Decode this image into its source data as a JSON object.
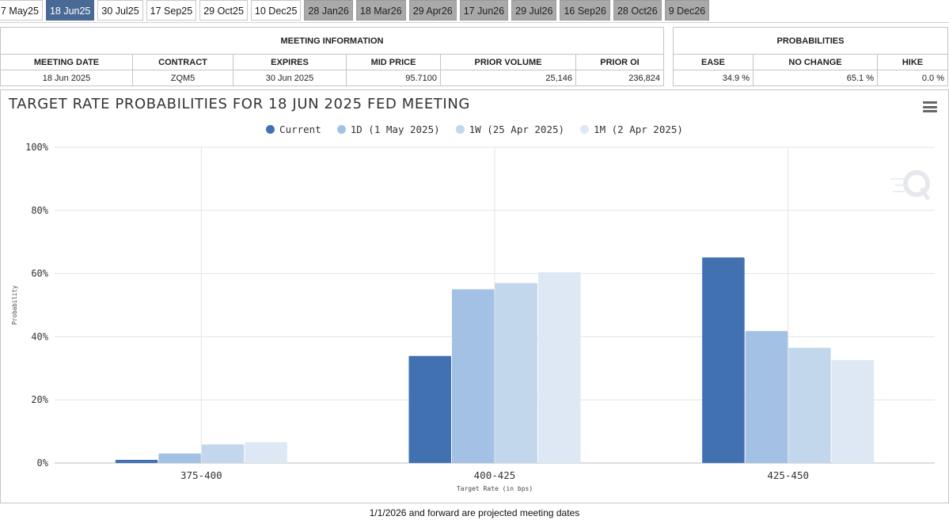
{
  "tabs": [
    {
      "label": "7 May25",
      "state": "normal"
    },
    {
      "label": "18 Jun25",
      "state": "active"
    },
    {
      "label": "30 Jul25",
      "state": "normal"
    },
    {
      "label": "17 Sep25",
      "state": "normal"
    },
    {
      "label": "29 Oct25",
      "state": "normal"
    },
    {
      "label": "10 Dec25",
      "state": "normal"
    },
    {
      "label": "28 Jan26",
      "state": "projected"
    },
    {
      "label": "18 Mar26",
      "state": "projected"
    },
    {
      "label": "29 Apr26",
      "state": "projected"
    },
    {
      "label": "17 Jun26",
      "state": "projected"
    },
    {
      "label": "29 Jul26",
      "state": "projected"
    },
    {
      "label": "16 Sep26",
      "state": "projected"
    },
    {
      "label": "28 Oct26",
      "state": "projected"
    },
    {
      "label": "9 Dec26",
      "state": "projected"
    }
  ],
  "meeting_info": {
    "title": "MEETING INFORMATION",
    "headers": [
      "MEETING DATE",
      "CONTRACT",
      "EXPIRES",
      "MID PRICE",
      "PRIOR VOLUME",
      "PRIOR OI"
    ],
    "values": [
      "18 Jun 2025",
      "ZQM5",
      "30 Jun 2025",
      "95.7100",
      "25,146",
      "236,824"
    ]
  },
  "probabilities": {
    "title": "PROBABILITIES",
    "headers": [
      "EASE",
      "NO CHANGE",
      "HIKE"
    ],
    "values": [
      "34.9 %",
      "65.1 %",
      "0.0 %"
    ]
  },
  "chart_data": {
    "type": "bar",
    "title": "TARGET RATE PROBABILITIES FOR 18 JUN 2025 FED MEETING",
    "xlabel": "Target Rate (in bps)",
    "ylabel": "Probability",
    "ylim": [
      0,
      100
    ],
    "yticks": [
      "0%",
      "20%",
      "40%",
      "60%",
      "80%",
      "100%"
    ],
    "categories": [
      "375-400",
      "400-425",
      "425-450"
    ],
    "series": [
      {
        "name": "Current",
        "color": "#4271b2",
        "values": [
          1.0,
          33.9,
          65.1
        ]
      },
      {
        "name": "1D (1 May 2025)",
        "color": "#a3c1e4",
        "values": [
          3.0,
          55.0,
          41.8
        ]
      },
      {
        "name": "1W (25 Apr 2025)",
        "color": "#c3d7ec",
        "values": [
          5.9,
          57.0,
          36.5
        ]
      },
      {
        "name": "1M (2 Apr 2025)",
        "color": "#dde8f4",
        "values": [
          6.6,
          60.4,
          32.6
        ]
      }
    ],
    "legend_position": "top-center",
    "grid": true
  },
  "footnote": "1/1/2026 and forward are projected meeting dates"
}
